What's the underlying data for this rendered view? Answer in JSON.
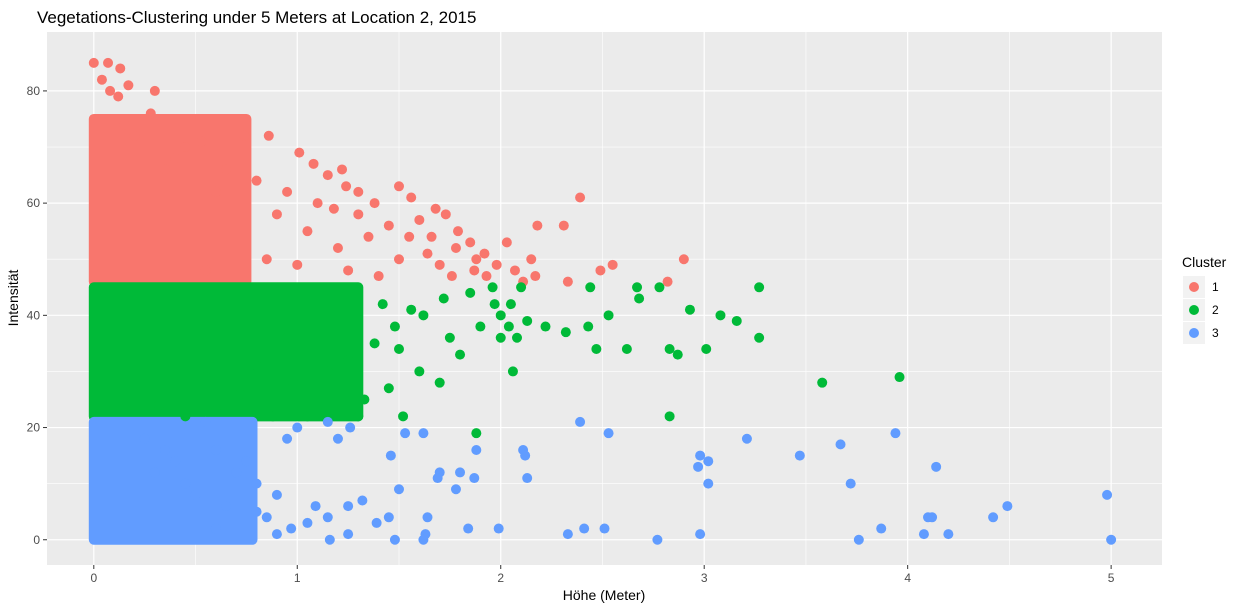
{
  "chart_data": {
    "type": "scatter",
    "title": "Vegetations-Clustering under 5 Meters at Location 2, 2015",
    "xlabel": "Höhe (Meter)",
    "ylabel": "Intensität",
    "xlim": [
      -0.23,
      5.25
    ],
    "ylim": [
      -4.5,
      90.5
    ],
    "x_ticks": [
      0,
      1,
      2,
      3,
      4,
      5
    ],
    "y_ticks": [
      0,
      20,
      40,
      60,
      80
    ],
    "grid": true,
    "legend": {
      "title": "Cluster",
      "position": "right"
    },
    "series": [
      {
        "name": "1",
        "color": "#F8766D",
        "dense_region": {
          "x_range": [
            0,
            0.75
          ],
          "y_range": [
            46,
            75
          ]
        },
        "points": [
          [
            0.0,
            85
          ],
          [
            0.07,
            85
          ],
          [
            0.13,
            84
          ],
          [
            0.04,
            82
          ],
          [
            0.17,
            81
          ],
          [
            0.12,
            79
          ],
          [
            0.15,
            74
          ],
          [
            0.28,
            76
          ],
          [
            0.2,
            72
          ],
          [
            0.45,
            70
          ],
          [
            0.53,
            71
          ],
          [
            0.74,
            72
          ],
          [
            0.86,
            72
          ],
          [
            1.01,
            69
          ],
          [
            1.08,
            67
          ],
          [
            1.22,
            66
          ],
          [
            1.15,
            65
          ],
          [
            1.24,
            63
          ],
          [
            1.38,
            60
          ],
          [
            1.5,
            63
          ],
          [
            1.56,
            61
          ],
          [
            1.68,
            59
          ],
          [
            1.73,
            58
          ],
          [
            1.79,
            55
          ],
          [
            1.85,
            53
          ],
          [
            1.78,
            52
          ],
          [
            1.92,
            51
          ],
          [
            1.98,
            49
          ],
          [
            1.93,
            47
          ],
          [
            2.03,
            53
          ],
          [
            2.07,
            48
          ],
          [
            2.11,
            46
          ],
          [
            2.15,
            50
          ],
          [
            2.18,
            56
          ],
          [
            2.17,
            47
          ],
          [
            2.31,
            56
          ],
          [
            2.33,
            46
          ],
          [
            2.39,
            61
          ],
          [
            2.49,
            48
          ],
          [
            2.55,
            49
          ],
          [
            2.82,
            46
          ],
          [
            2.9,
            50
          ],
          [
            1.6,
            57
          ],
          [
            1.45,
            56
          ],
          [
            1.3,
            58
          ],
          [
            1.35,
            54
          ],
          [
            1.1,
            60
          ],
          [
            0.95,
            62
          ],
          [
            0.9,
            58
          ],
          [
            0.8,
            64
          ],
          [
            0.65,
            66
          ],
          [
            0.4,
            68
          ],
          [
            0.35,
            66
          ],
          [
            1.64,
            51
          ],
          [
            1.7,
            49
          ],
          [
            1.87,
            48
          ],
          [
            1.76,
            47
          ],
          [
            1.5,
            50
          ],
          [
            1.25,
            48
          ],
          [
            1.4,
            47
          ],
          [
            1.0,
            49
          ],
          [
            0.55,
            48
          ],
          [
            1.3,
            62
          ],
          [
            1.18,
            59
          ],
          [
            1.05,
            55
          ],
          [
            0.6,
            62
          ],
          [
            1.2,
            52
          ],
          [
            0.85,
            50
          ],
          [
            1.55,
            54
          ],
          [
            1.88,
            50
          ],
          [
            1.66,
            54
          ],
          [
            0.3,
            80
          ],
          [
            0.08,
            80
          ]
        ]
      },
      {
        "name": "2",
        "color": "#00BA38",
        "dense_region": {
          "x_range": [
            0,
            1.3
          ],
          "y_range": [
            22,
            45
          ]
        },
        "points": [
          [
            1.96,
            45
          ],
          [
            2.1,
            45
          ],
          [
            2.44,
            45
          ],
          [
            2.67,
            45
          ],
          [
            2.78,
            45
          ],
          [
            3.27,
            45
          ],
          [
            2.05,
            42
          ],
          [
            2.68,
            43
          ],
          [
            2.93,
            41
          ],
          [
            2.0,
            40
          ],
          [
            2.04,
            38
          ],
          [
            2.22,
            38
          ],
          [
            2.13,
            39
          ],
          [
            2.43,
            38
          ],
          [
            2.53,
            40
          ],
          [
            3.08,
            40
          ],
          [
            3.16,
            39
          ],
          [
            2.32,
            37
          ],
          [
            3.27,
            36
          ],
          [
            2.0,
            36
          ],
          [
            2.08,
            36
          ],
          [
            2.47,
            34
          ],
          [
            2.62,
            34
          ],
          [
            2.83,
            34
          ],
          [
            3.01,
            34
          ],
          [
            2.87,
            33
          ],
          [
            2.06,
            30
          ],
          [
            3.58,
            28
          ],
          [
            3.96,
            29
          ],
          [
            2.83,
            22
          ],
          [
            1.52,
            22
          ],
          [
            1.88,
            19
          ],
          [
            1.5,
            34
          ],
          [
            1.8,
            33
          ],
          [
            1.6,
            30
          ],
          [
            1.7,
            28
          ],
          [
            1.45,
            27
          ],
          [
            1.33,
            25
          ],
          [
            1.1,
            24
          ],
          [
            0.88,
            22
          ],
          [
            1.75,
            36
          ],
          [
            1.9,
            38
          ],
          [
            1.62,
            40
          ],
          [
            1.48,
            38
          ],
          [
            1.38,
            35
          ],
          [
            1.25,
            32
          ],
          [
            1.15,
            30
          ],
          [
            0.98,
            28
          ],
          [
            0.72,
            26
          ],
          [
            0.6,
            23
          ],
          [
            0.32,
            24
          ],
          [
            0.45,
            22
          ],
          [
            1.3,
            22
          ],
          [
            1.05,
            22
          ],
          [
            1.97,
            42
          ],
          [
            1.85,
            44
          ],
          [
            1.72,
            43
          ],
          [
            1.56,
            41
          ],
          [
            1.42,
            42
          ],
          [
            0.8,
            31
          ],
          [
            0.55,
            29
          ],
          [
            0.95,
            36
          ]
        ]
      },
      {
        "name": "3",
        "color": "#619CFF",
        "dense_region": {
          "x_range": [
            0,
            0.78
          ],
          "y_range": [
            0,
            21
          ]
        },
        "points": [
          [
            0.55,
            21
          ],
          [
            2.39,
            21
          ],
          [
            1.15,
            21
          ],
          [
            1.0,
            20
          ],
          [
            1.26,
            20
          ],
          [
            1.53,
            19
          ],
          [
            1.62,
            19
          ],
          [
            2.53,
            19
          ],
          [
            3.94,
            19
          ],
          [
            0.95,
            18
          ],
          [
            1.2,
            18
          ],
          [
            3.21,
            18
          ],
          [
            3.67,
            17
          ],
          [
            1.88,
            16
          ],
          [
            2.11,
            16
          ],
          [
            2.12,
            15
          ],
          [
            1.46,
            15
          ],
          [
            2.98,
            15
          ],
          [
            3.47,
            15
          ],
          [
            3.02,
            14
          ],
          [
            2.97,
            13
          ],
          [
            4.14,
            13
          ],
          [
            1.8,
            12
          ],
          [
            1.7,
            12
          ],
          [
            0.7,
            12
          ],
          [
            1.87,
            11
          ],
          [
            1.69,
            11
          ],
          [
            2.13,
            11
          ],
          [
            3.72,
            10
          ],
          [
            3.02,
            10
          ],
          [
            1.78,
            9
          ],
          [
            1.5,
            9
          ],
          [
            1.32,
            7
          ],
          [
            0.9,
            8
          ],
          [
            1.25,
            6
          ],
          [
            1.09,
            6
          ],
          [
            0.8,
            5
          ],
          [
            1.45,
            4
          ],
          [
            1.64,
            4
          ],
          [
            1.39,
            3
          ],
          [
            2.41,
            2
          ],
          [
            2.51,
            2
          ],
          [
            1.84,
            2
          ],
          [
            1.99,
            2
          ],
          [
            3.87,
            2
          ],
          [
            4.12,
            4
          ],
          [
            4.1,
            4
          ],
          [
            4.42,
            4
          ],
          [
            4.49,
            6
          ],
          [
            4.98,
            8
          ],
          [
            2.33,
            1
          ],
          [
            2.98,
            1
          ],
          [
            4.08,
            1
          ],
          [
            4.2,
            1
          ],
          [
            1.63,
            1
          ],
          [
            1.25,
            1
          ],
          [
            1.48,
            0
          ],
          [
            1.16,
            0
          ],
          [
            2.77,
            0
          ],
          [
            3.76,
            0
          ],
          [
            5.0,
            0
          ],
          [
            1.62,
            0
          ],
          [
            0.97,
            2
          ],
          [
            1.05,
            3
          ],
          [
            1.15,
            4
          ],
          [
            0.9,
            1
          ],
          [
            0.85,
            4
          ],
          [
            0.6,
            2
          ],
          [
            0.5,
            8
          ],
          [
            0.65,
            6
          ],
          [
            0.4,
            14
          ],
          [
            0.35,
            16
          ],
          [
            0.25,
            18
          ],
          [
            0.3,
            12
          ],
          [
            0.6,
            16
          ],
          [
            0.75,
            14
          ],
          [
            0.8,
            10
          ],
          [
            0.45,
            10
          ]
        ]
      }
    ]
  }
}
